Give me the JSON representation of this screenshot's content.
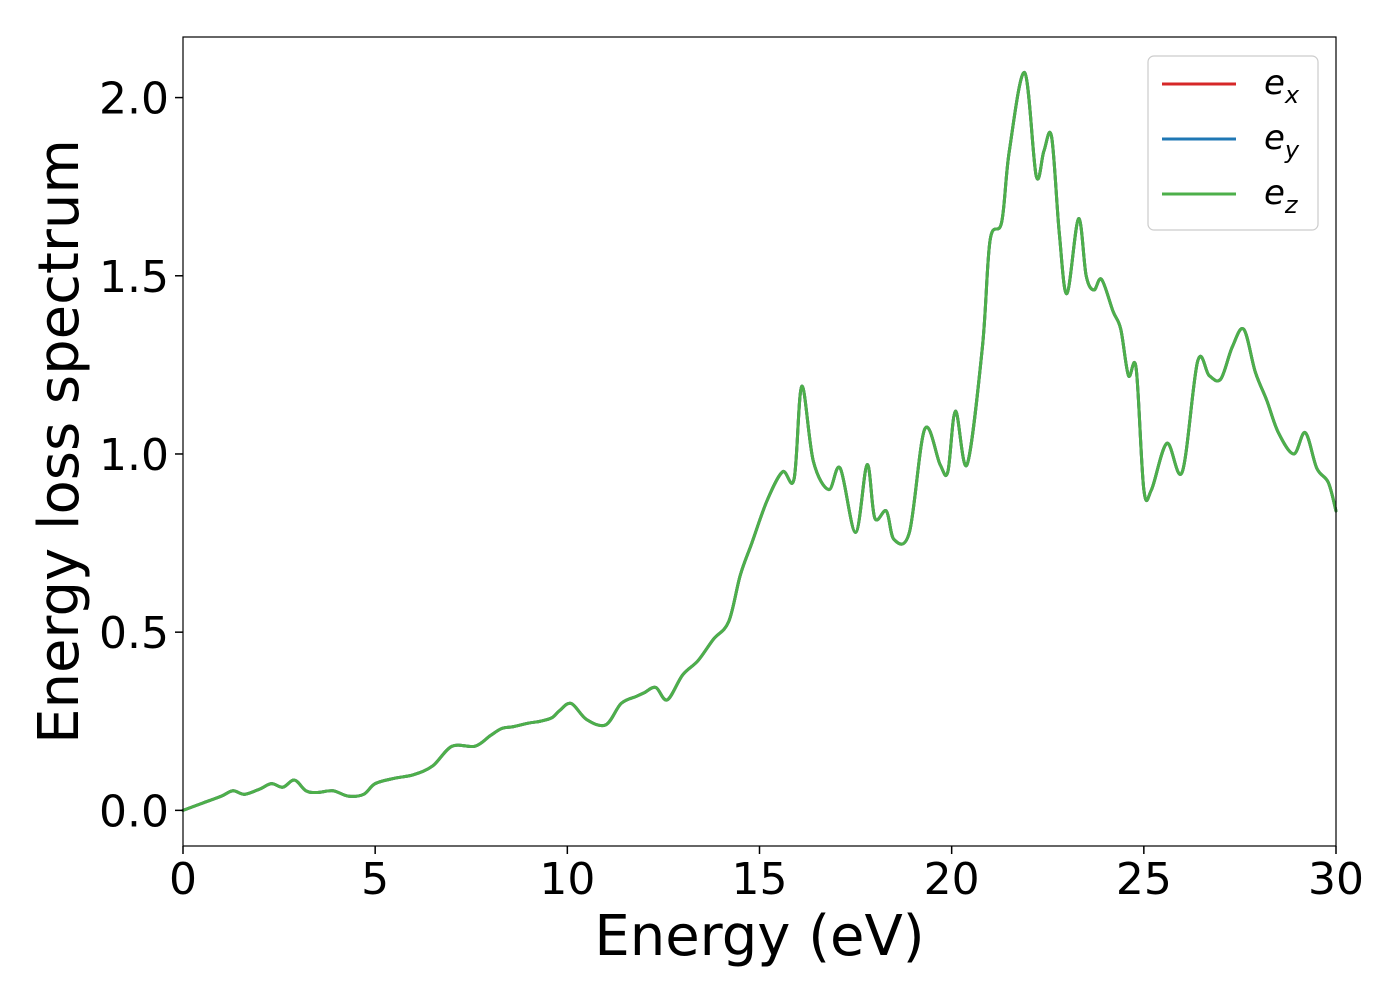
{
  "chart_data": {
    "type": "line",
    "title": "",
    "xlabel": "Energy (eV)",
    "ylabel": "Energy loss spectrum",
    "xlim": [
      0,
      30
    ],
    "ylim": [
      -0.1,
      2.17
    ],
    "xticks": [
      0,
      5,
      10,
      15,
      20,
      25,
      30
    ],
    "yticks": [
      0.0,
      0.5,
      1.0,
      1.5,
      2.0
    ],
    "xtick_labels": [
      "0",
      "5",
      "10",
      "15",
      "20",
      "25",
      "30"
    ],
    "ytick_labels": [
      "0.0",
      "0.5",
      "1.0",
      "1.5",
      "2.0"
    ],
    "grid": false,
    "legend_position": "top-right",
    "x": [
      0,
      0.5,
      1.0,
      1.3,
      1.6,
      2.0,
      2.3,
      2.6,
      2.9,
      3.2,
      3.5,
      3.9,
      4.3,
      4.7,
      5.0,
      5.5,
      6.0,
      6.5,
      7.0,
      7.6,
      8.0,
      8.3,
      8.6,
      9.0,
      9.3,
      9.6,
      9.8,
      10.1,
      10.5,
      11.0,
      11.4,
      11.8,
      12.0,
      12.3,
      12.6,
      13.0,
      13.4,
      13.8,
      14.2,
      14.5,
      14.8,
      15.2,
      15.6,
      15.9,
      16.1,
      16.4,
      16.8,
      17.1,
      17.5,
      17.8,
      18.0,
      18.3,
      18.5,
      18.9,
      19.3,
      19.7,
      19.9,
      20.1,
      20.4,
      20.8,
      21.0,
      21.3,
      21.5,
      21.9,
      22.2,
      22.4,
      22.6,
      22.8,
      23.0,
      23.3,
      23.5,
      23.7,
      23.9,
      24.2,
      24.4,
      24.6,
      24.8,
      25.0,
      25.2,
      25.6,
      26.0,
      26.4,
      26.7,
      27.0,
      27.3,
      27.6,
      27.9,
      28.2,
      28.5,
      28.9,
      29.2,
      29.5,
      29.8,
      30.0
    ],
    "series": [
      {
        "name": "e_x",
        "color": "#d62728",
        "y": [
          0.0,
          0.02,
          0.04,
          0.055,
          0.045,
          0.06,
          0.075,
          0.065,
          0.085,
          0.055,
          0.05,
          0.055,
          0.04,
          0.045,
          0.075,
          0.09,
          0.1,
          0.125,
          0.18,
          0.18,
          0.21,
          0.23,
          0.235,
          0.245,
          0.25,
          0.26,
          0.28,
          0.3,
          0.255,
          0.24,
          0.3,
          0.32,
          0.33,
          0.345,
          0.31,
          0.38,
          0.42,
          0.48,
          0.53,
          0.66,
          0.75,
          0.87,
          0.95,
          0.93,
          1.19,
          0.98,
          0.9,
          0.96,
          0.78,
          0.97,
          0.82,
          0.84,
          0.76,
          0.78,
          1.07,
          0.97,
          0.95,
          1.12,
          0.97,
          1.3,
          1.6,
          1.65,
          1.85,
          2.07,
          1.78,
          1.85,
          1.89,
          1.62,
          1.45,
          1.66,
          1.5,
          1.46,
          1.49,
          1.4,
          1.35,
          1.22,
          1.24,
          0.9,
          0.9,
          1.03,
          0.95,
          1.26,
          1.22,
          1.21,
          1.3,
          1.35,
          1.23,
          1.15,
          1.06,
          1.0,
          1.06,
          0.96,
          0.92,
          0.84
        ]
      },
      {
        "name": "e_y",
        "color": "#1f77b4",
        "y": [
          0.0,
          0.02,
          0.04,
          0.055,
          0.045,
          0.06,
          0.075,
          0.065,
          0.085,
          0.055,
          0.05,
          0.055,
          0.04,
          0.045,
          0.075,
          0.09,
          0.1,
          0.125,
          0.18,
          0.18,
          0.21,
          0.23,
          0.235,
          0.245,
          0.25,
          0.26,
          0.28,
          0.3,
          0.255,
          0.24,
          0.3,
          0.32,
          0.33,
          0.345,
          0.31,
          0.38,
          0.42,
          0.48,
          0.53,
          0.66,
          0.75,
          0.87,
          0.95,
          0.93,
          1.19,
          0.98,
          0.9,
          0.96,
          0.78,
          0.97,
          0.82,
          0.84,
          0.76,
          0.78,
          1.07,
          0.97,
          0.95,
          1.12,
          0.97,
          1.3,
          1.6,
          1.65,
          1.85,
          2.07,
          1.78,
          1.85,
          1.89,
          1.62,
          1.45,
          1.66,
          1.5,
          1.46,
          1.49,
          1.4,
          1.35,
          1.22,
          1.24,
          0.9,
          0.9,
          1.03,
          0.95,
          1.26,
          1.22,
          1.21,
          1.3,
          1.35,
          1.23,
          1.15,
          1.06,
          1.0,
          1.06,
          0.96,
          0.92,
          0.84
        ]
      },
      {
        "name": "e_z",
        "color": "#4daf4a",
        "y": [
          0.0,
          0.02,
          0.04,
          0.055,
          0.045,
          0.06,
          0.075,
          0.065,
          0.085,
          0.055,
          0.05,
          0.055,
          0.04,
          0.045,
          0.075,
          0.09,
          0.1,
          0.125,
          0.18,
          0.18,
          0.21,
          0.23,
          0.235,
          0.245,
          0.25,
          0.26,
          0.28,
          0.3,
          0.255,
          0.24,
          0.3,
          0.32,
          0.33,
          0.345,
          0.31,
          0.38,
          0.42,
          0.48,
          0.53,
          0.66,
          0.75,
          0.87,
          0.95,
          0.93,
          1.19,
          0.98,
          0.9,
          0.96,
          0.78,
          0.97,
          0.82,
          0.84,
          0.76,
          0.78,
          1.07,
          0.97,
          0.95,
          1.12,
          0.97,
          1.3,
          1.6,
          1.65,
          1.85,
          2.07,
          1.78,
          1.85,
          1.89,
          1.62,
          1.45,
          1.66,
          1.5,
          1.46,
          1.49,
          1.4,
          1.35,
          1.22,
          1.24,
          0.9,
          0.9,
          1.03,
          0.95,
          1.26,
          1.22,
          1.21,
          1.3,
          1.35,
          1.23,
          1.15,
          1.06,
          1.0,
          1.06,
          0.96,
          0.92,
          0.84
        ]
      }
    ],
    "legend": [
      {
        "base": "e",
        "sub": "x",
        "color": "#d62728"
      },
      {
        "base": "e",
        "sub": "y",
        "color": "#1f77b4"
      },
      {
        "base": "e",
        "sub": "z",
        "color": "#4daf4a"
      }
    ]
  }
}
